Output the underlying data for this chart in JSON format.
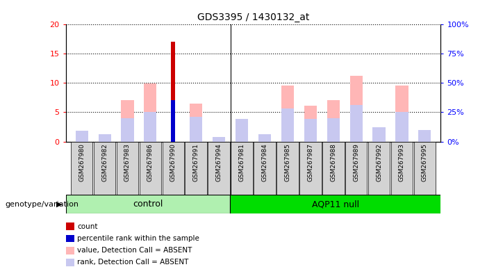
{
  "title": "GDS3395 / 1430132_at",
  "samples": [
    "GSM267980",
    "GSM267982",
    "GSM267983",
    "GSM267986",
    "GSM267990",
    "GSM267991",
    "GSM267994",
    "GSM267981",
    "GSM267984",
    "GSM267985",
    "GSM267987",
    "GSM267988",
    "GSM267989",
    "GSM267992",
    "GSM267993",
    "GSM267995"
  ],
  "groups": [
    "control",
    "control",
    "control",
    "control",
    "control",
    "control",
    "control",
    "AQP11 null",
    "AQP11 null",
    "AQP11 null",
    "AQP11 null",
    "AQP11 null",
    "AQP11 null",
    "AQP11 null",
    "AQP11 null",
    "AQP11 null"
  ],
  "count": [
    0,
    0,
    0,
    0,
    17,
    0,
    0,
    0,
    0,
    0,
    0,
    0,
    0,
    0,
    0,
    0
  ],
  "percentile_rank": [
    0,
    0,
    0,
    0,
    35,
    0,
    0,
    0,
    0,
    0,
    0,
    0,
    0,
    0,
    0,
    0
  ],
  "absent_value": [
    0.3,
    1.1,
    7.1,
    9.9,
    0,
    6.5,
    0,
    2.8,
    1.1,
    9.5,
    6.1,
    7.0,
    11.2,
    0,
    9.5,
    0
  ],
  "absent_rank": [
    9,
    6,
    20,
    25,
    0,
    21,
    4,
    19,
    6,
    28,
    19,
    20,
    31,
    12,
    25,
    10
  ],
  "group_control_count": 7,
  "ylim_left": [
    0,
    20
  ],
  "ylim_right": [
    0,
    100
  ],
  "yticks_left": [
    0,
    5,
    10,
    15,
    20
  ],
  "yticks_right": [
    0,
    25,
    50,
    75,
    100
  ],
  "ytick_labels_right": [
    "0%",
    "25%",
    "50%",
    "75%",
    "100%"
  ],
  "color_count": "#cc0000",
  "color_rank": "#0000cc",
  "color_absent_value": "#ffb6b6",
  "color_absent_rank": "#c8c8f0",
  "legend_items": [
    "count",
    "percentile rank within the sample",
    "value, Detection Call = ABSENT",
    "rank, Detection Call = ABSENT"
  ],
  "legend_colors": [
    "#cc0000",
    "#0000cc",
    "#ffb6b6",
    "#c8c8f0"
  ],
  "xlabel_group": "genotype/variation",
  "background_sample": "#d3d3d3",
  "ctrl_color": "#b0f0b0",
  "aqp_color": "#00dd00"
}
